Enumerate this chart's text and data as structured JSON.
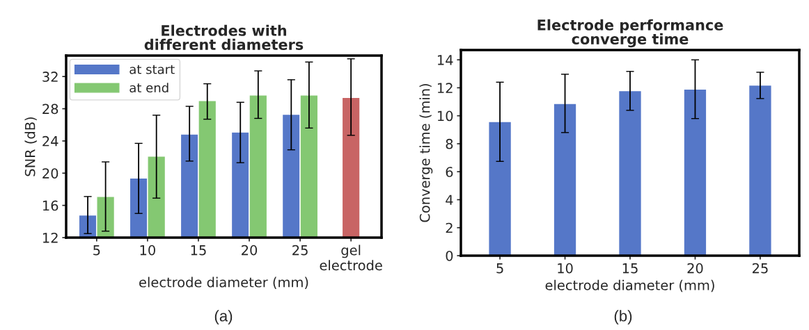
{
  "chart_data": [
    {
      "type": "bar",
      "title": "Electrodes with\ndifferent diameters",
      "xlabel": "electrode diameter (mm)",
      "ylabel": "SNR (dB)",
      "categories": [
        "5",
        "10",
        "15",
        "20",
        "25",
        "gel\nelectrode"
      ],
      "series": [
        {
          "name": "at start",
          "color": "#5577c8",
          "values": [
            14.8,
            19.4,
            24.85,
            25.1,
            27.3,
            null
          ],
          "errors": [
            [
              12.5,
              17.1
            ],
            [
              15.0,
              23.7
            ],
            [
              21.5,
              28.3
            ],
            [
              21.3,
              28.8
            ],
            [
              22.9,
              31.6
            ],
            null
          ]
        },
        {
          "name": "at end",
          "color": "#84c872",
          "values": [
            17.1,
            22.1,
            29.0,
            29.7,
            29.7,
            null
          ],
          "errors": [
            [
              12.8,
              21.4
            ],
            [
              16.9,
              27.2
            ],
            [
              26.7,
              31.1
            ],
            [
              26.8,
              32.7
            ],
            [
              25.6,
              33.8
            ],
            null
          ]
        },
        {
          "color": "#c86464",
          "values": [
            null,
            null,
            null,
            null,
            null,
            29.4
          ],
          "errors": [
            null,
            null,
            null,
            null,
            null,
            [
              24.7,
              34.2
            ]
          ]
        }
      ],
      "ylim": [
        12,
        34.6
      ],
      "yticks": [
        12,
        16,
        20,
        24,
        28,
        32
      ],
      "grid": false,
      "legend": "top left",
      "annotations": [
        "(a)"
      ]
    },
    {
      "type": "bar",
      "title": "Electrode performance\nconverge time",
      "xlabel": "electrode diameter (mm)",
      "ylabel": "Converge time (min)",
      "categories": [
        "5",
        "10",
        "15",
        "20",
        "25"
      ],
      "series": [
        {
          "color": "#5577c8",
          "values": [
            9.58,
            10.87,
            11.79,
            11.9,
            12.19
          ],
          "errors": [
            [
              6.74,
              12.4
            ],
            [
              8.8,
              12.97
            ],
            [
              10.39,
              13.17
            ],
            [
              9.8,
              14.0
            ],
            [
              11.23,
              13.11
            ]
          ]
        }
      ],
      "ylim": [
        0,
        14.7
      ],
      "yticks": [
        0,
        2,
        4,
        6,
        8,
        10,
        12,
        14
      ],
      "grid": false,
      "annotations": [
        "(b)"
      ]
    }
  ]
}
